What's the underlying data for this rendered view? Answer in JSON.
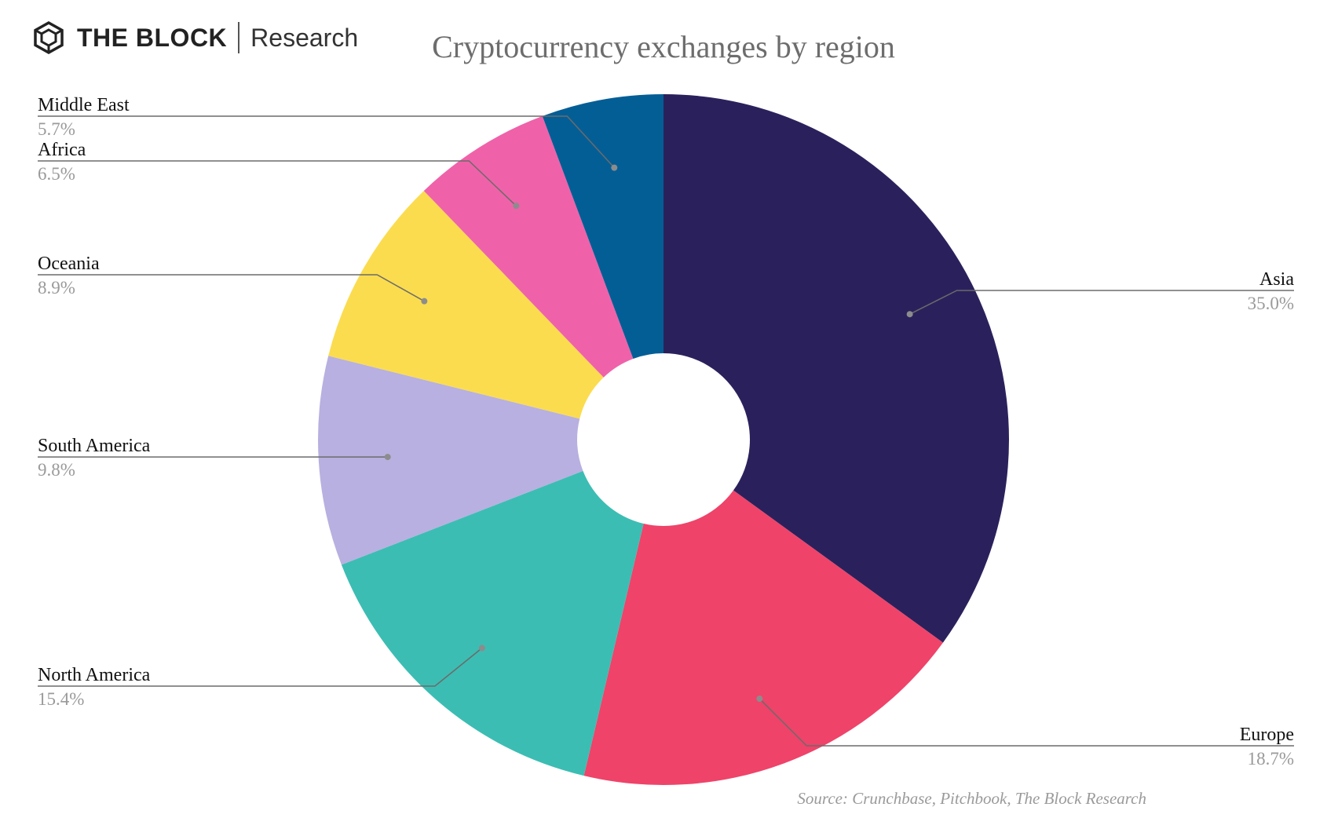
{
  "brand": {
    "name": "THE BLOCK",
    "sub": "Research"
  },
  "footer": {
    "source": "Source: Crunchbase, Pitchbook, The Block Research"
  },
  "chart_data": {
    "type": "pie",
    "title": "Cryptocurrency exchanges by region",
    "slices": [
      {
        "label": "Asia",
        "value": 35.0,
        "display": "35.0%",
        "color": "#2a215c"
      },
      {
        "label": "Europe",
        "value": 18.7,
        "display": "18.7%",
        "color": "#ef4369"
      },
      {
        "label": "North America",
        "value": 15.4,
        "display": "15.4%",
        "color": "#3cbdb3"
      },
      {
        "label": "South America",
        "value": 9.8,
        "display": "9.8%",
        "color": "#b8b0e0"
      },
      {
        "label": "Oceania",
        "value": 8.9,
        "display": "8.9%",
        "color": "#fbdc4e"
      },
      {
        "label": "Africa",
        "value": 6.5,
        "display": "6.5%",
        "color": "#ef62a9"
      },
      {
        "label": "Middle East",
        "value": 5.7,
        "display": "5.7%",
        "color": "#045e96"
      }
    ],
    "style": "donut",
    "start_angle": "12 o'clock",
    "direction": "clockwise",
    "legend": "none",
    "label_placement": "leader lines to left and right edges"
  }
}
